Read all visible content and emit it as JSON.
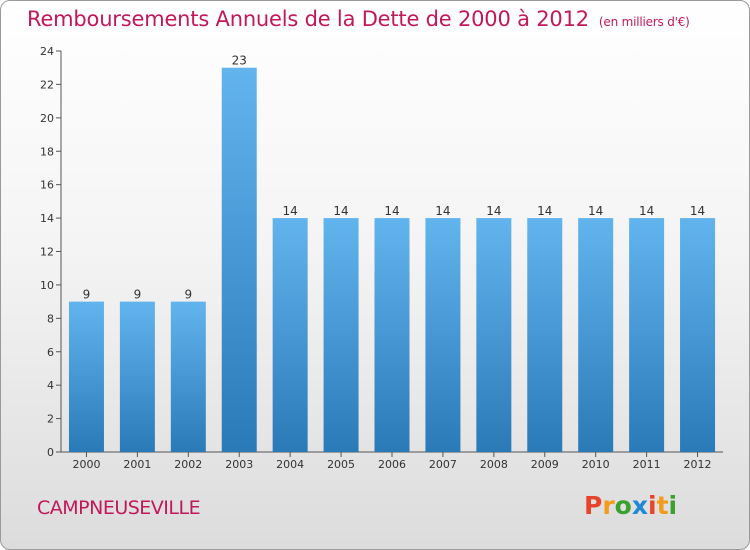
{
  "header": {
    "title": "Remboursements Annuels de la Dette de 2000 à 2012",
    "subtitle": "(en milliers d'€)"
  },
  "footer": {
    "commune": "CAMPNEUSEVILLE",
    "logo_letters": [
      "P",
      "r",
      "o",
      "x",
      "i",
      "t",
      "i"
    ],
    "logo_colors": [
      "#e8442a",
      "#f39c1b",
      "#3aa02f",
      "#1e88d6",
      "#e8442a",
      "#f39c1b",
      "#3aa02f"
    ]
  },
  "chart_data": {
    "type": "bar",
    "title": "Remboursements Annuels de la Dette de 2000 à 2012",
    "subtitle": "(en milliers d'€)",
    "categories": [
      "2000",
      "2001",
      "2002",
      "2003",
      "2004",
      "2005",
      "2006",
      "2007",
      "2008",
      "2009",
      "2010",
      "2011",
      "2012"
    ],
    "values": [
      9,
      9,
      9,
      23,
      14,
      14,
      14,
      14,
      14,
      14,
      14,
      14,
      14
    ],
    "xlabel": "",
    "ylabel": "",
    "ylim": [
      0,
      24
    ],
    "yticks": [
      0,
      2,
      4,
      6,
      8,
      10,
      12,
      14,
      16,
      18,
      20,
      22,
      24
    ],
    "grid": false,
    "bar_color_top": "#62b4ee",
    "bar_color_bottom": "#2a7ab8",
    "label_color": "#333333"
  }
}
